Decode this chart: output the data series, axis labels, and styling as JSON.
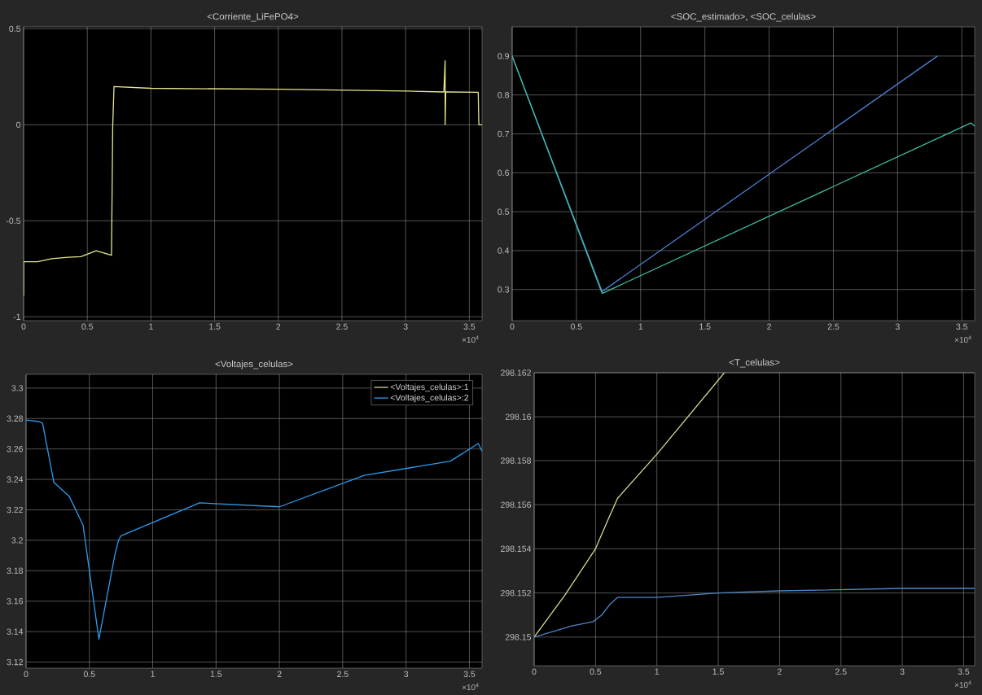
{
  "chart_data": [
    {
      "type": "line",
      "title": "<Corriente_LiFePO4>",
      "xlim": [
        0,
        3.6
      ],
      "ylim": [
        -1.02,
        0.51
      ],
      "xticks": [
        0,
        0.5,
        1,
        1.5,
        2,
        2.5,
        3,
        3.5
      ],
      "yticks": [
        -1,
        -0.5,
        0,
        0.5
      ],
      "grid": true,
      "x": [
        0,
        0,
        0.11,
        0.22,
        0.35,
        0.45,
        0.57,
        0.69,
        0.7,
        0.71,
        1.0,
        2.0,
        3.0,
        3.3,
        3.31,
        3.31,
        3.315,
        3.32,
        3.57,
        3.575,
        3.6
      ],
      "series": [
        {
          "color": "#e6e68c",
          "values": [
            -0.89,
            -0.713,
            -0.713,
            -0.697,
            -0.69,
            -0.687,
            -0.656,
            -0.679,
            0,
            0.199,
            0.19,
            0.185,
            0.176,
            0.171,
            0.334,
            0,
            0.171,
            0.171,
            0.169,
            0,
            0
          ]
        }
      ],
      "annotations": [
        "×10$^{4}$"
      ]
    },
    {
      "type": "line",
      "title": "<SOC_estimado>, <SOC_celulas>",
      "xlim": [
        0,
        3.6
      ],
      "ylim": [
        0.22,
        0.975
      ],
      "xticks": [
        0,
        0.5,
        1,
        1.5,
        2,
        2.5,
        3,
        3.5
      ],
      "yticks": [
        0.3,
        0.4,
        0.5,
        0.6,
        0.7,
        0.8,
        0.9
      ],
      "grid": true,
      "series": [
        {
          "color": "#4d7ecf",
          "x": [
            0,
            0.7,
            3.31
          ],
          "values": [
            0.9,
            0.295,
            0.9
          ]
        },
        {
          "color": "#3fbfa8",
          "x": [
            0,
            0.7,
            3.57,
            3.6
          ],
          "values": [
            0.9,
            0.29,
            0.728,
            0.72
          ]
        }
      ],
      "annotations": [
        "×10$^{4}$"
      ]
    },
    {
      "type": "line",
      "title": "<Voltajes_celulas>",
      "xlim": [
        0,
        3.6
      ],
      "ylim": [
        3.116,
        3.309
      ],
      "xticks": [
        0,
        0.5,
        1,
        1.5,
        2,
        2.5,
        3,
        3.5
      ],
      "yticks": [
        3.12,
        3.14,
        3.16,
        3.18,
        3.2,
        3.22,
        3.24,
        3.26,
        3.28,
        3.3
      ],
      "grid": true,
      "legend": "top right",
      "x": [
        0,
        0.1,
        0.13,
        0.22,
        0.34,
        0.45,
        0.575,
        0.7,
        0.73,
        0.75,
        1.37,
        2.0,
        2.67,
        3.35,
        3.57,
        3.6
      ],
      "series": [
        {
          "name": "<Voltajes_celulas>:1",
          "color": "#d8d8a0",
          "values": [
            null,
            null,
            null,
            null,
            null,
            null,
            null,
            null,
            null,
            null,
            null,
            null,
            null,
            null,
            null,
            null
          ]
        },
        {
          "name": "<Voltajes_celulas>:2",
          "color": "#2b9cf0",
          "values": [
            3.279,
            3.278,
            3.277,
            3.238,
            3.229,
            3.21,
            3.135,
            3.19,
            3.2,
            3.203,
            3.2246,
            3.222,
            3.2427,
            3.252,
            3.2636,
            3.2585
          ]
        }
      ],
      "annotations": [
        "×10$^{4}$"
      ]
    },
    {
      "type": "line",
      "title": "<T_celulas>",
      "xlim": [
        0,
        3.59
      ],
      "ylim": [
        298.1487,
        298.162
      ],
      "xticks": [
        0,
        0.5,
        1,
        1.5,
        2,
        2.5,
        3,
        3.5
      ],
      "yticks": [
        298.15,
        298.152,
        298.154,
        298.156,
        298.158,
        298.16,
        298.162
      ],
      "grid": true,
      "series": [
        {
          "color": "#d8d890",
          "x": [
            0,
            0.25,
            0.5,
            0.6,
            0.68,
            1.0,
            1.55
          ],
          "values": [
            298.15,
            298.1519,
            298.154,
            298.1553,
            298.1563,
            298.1583,
            298.162
          ]
        },
        {
          "color": "#4f86c6",
          "x": [
            0,
            0.3,
            0.48,
            0.55,
            0.62,
            0.68,
            1.0,
            1.5,
            2.0,
            3.0,
            3.59
          ],
          "values": [
            298.15,
            298.1505,
            298.1507,
            298.151,
            298.1515,
            298.1518,
            298.1518,
            298.152,
            298.1521,
            298.1522,
            298.1522
          ]
        }
      ],
      "annotations": [
        "×10$^{4}$"
      ]
    }
  ]
}
